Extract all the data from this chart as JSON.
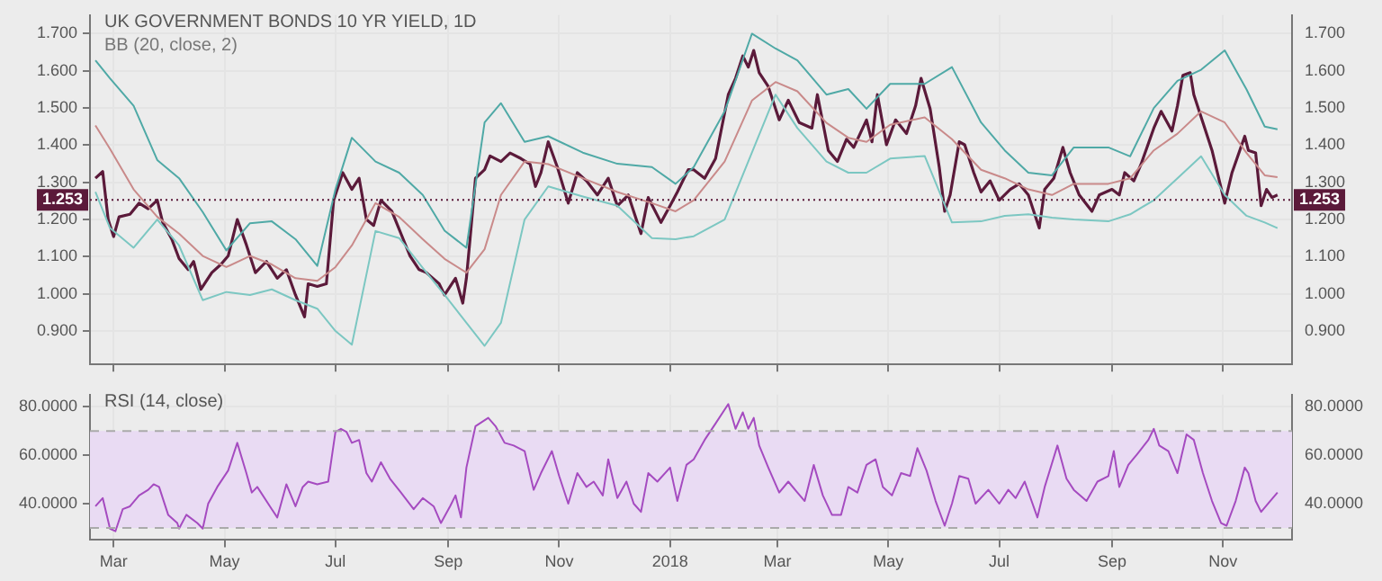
{
  "chart_data": [
    {
      "type": "line",
      "title": "UK GOVERNMENT BONDS 10 YR YIELD, 1D",
      "subtitle": "BB (20, close, 2)",
      "tick_labels": "y",
      "grid": true,
      "xlim": [
        "2017-02-16",
        "2018-12-09"
      ],
      "xticks": [
        {
          "value": "2017-03-01",
          "label": null
        },
        {
          "value": "2017-05-01",
          "label": null
        },
        {
          "value": "2017-07-01",
          "label": null
        },
        {
          "value": "2017-09-01",
          "label": null
        },
        {
          "value": "2017-11-01",
          "label": null
        },
        {
          "value": "2018-01-01",
          "label": null
        },
        {
          "value": "2018-03-01",
          "label": null
        },
        {
          "value": "2018-05-01",
          "label": null
        },
        {
          "value": "2018-07-01",
          "label": null
        },
        {
          "value": "2018-09-01",
          "label": null
        },
        {
          "value": "2018-11-01",
          "label": null
        }
      ],
      "ylim": [
        0.81,
        1.75
      ],
      "yticks": [
        {
          "value": 0.9,
          "label": "0.900"
        },
        {
          "value": 1.0,
          "label": "1.000"
        },
        {
          "value": 1.1,
          "label": "1.100"
        },
        {
          "value": 1.2,
          "label": "1.200"
        },
        {
          "value": 1.3,
          "label": "1.300"
        },
        {
          "value": 1.4,
          "label": "1.400"
        },
        {
          "value": 1.5,
          "label": "1.500"
        },
        {
          "value": 1.6,
          "label": "1.600"
        },
        {
          "value": 1.7,
          "label": "1.700"
        }
      ],
      "y2lim": [
        0.81,
        1.75
      ],
      "y2ticks": [
        {
          "value": 0.9,
          "label": "0.900"
        },
        {
          "value": 1.0,
          "label": "1.000"
        },
        {
          "value": 1.1,
          "label": "1.100"
        },
        {
          "value": 1.2,
          "label": "1.200"
        },
        {
          "value": 1.3,
          "label": "1.300"
        },
        {
          "value": 1.4,
          "label": "1.400"
        },
        {
          "value": 1.5,
          "label": "1.500"
        },
        {
          "value": 1.6,
          "label": "1.600"
        },
        {
          "value": 1.7,
          "label": "1.700"
        }
      ],
      "ref_lines": [
        {
          "axis": "y",
          "value": 1.253,
          "label": "1.253",
          "color": "#5b1a3a",
          "line_style": "dotted"
        }
      ],
      "series": [
        {
          "color": "#4fa9a6",
          "x": [
            "2017-02-19",
            "2017-02-27",
            "2017-03-12",
            "2017-03-25",
            "2017-04-06",
            "2017-04-19",
            "2017-05-02",
            "2017-05-15",
            "2017-05-27",
            "2017-06-09",
            "2017-06-21",
            "2017-07-01",
            "2017-07-10",
            "2017-07-23",
            "2017-08-05",
            "2017-08-18",
            "2017-08-30",
            "2017-09-11",
            "2017-09-21",
            "2017-09-30",
            "2017-10-13",
            "2017-10-26",
            "2017-11-14",
            "2017-12-03",
            "2017-12-22",
            "2018-01-04",
            "2018-01-14",
            "2018-01-31",
            "2018-02-15",
            "2018-02-28",
            "2018-03-12",
            "2018-03-28",
            "2018-04-09",
            "2018-04-19",
            "2018-05-02",
            "2018-05-21",
            "2018-06-05",
            "2018-06-21",
            "2018-07-04",
            "2018-07-17",
            "2018-07-30",
            "2018-08-11",
            "2018-08-30",
            "2018-09-11",
            "2018-09-24",
            "2018-10-07",
            "2018-10-20",
            "2018-11-02",
            "2018-11-14",
            "2018-11-24",
            "2018-12-01"
          ],
          "values": [
            1.628,
            1.58,
            1.506,
            1.36,
            1.311,
            1.22,
            1.117,
            1.19,
            1.195,
            1.147,
            1.075,
            1.281,
            1.42,
            1.356,
            1.326,
            1.266,
            1.17,
            1.124,
            1.461,
            1.513,
            1.409,
            1.424,
            1.38,
            1.35,
            1.341,
            1.296,
            1.341,
            1.491,
            1.7,
            1.66,
            1.628,
            1.536,
            1.551,
            1.498,
            1.565,
            1.565,
            1.61,
            1.461,
            1.386,
            1.326,
            1.319,
            1.394,
            1.394,
            1.37,
            1.5,
            1.573,
            1.603,
            1.655,
            1.55,
            1.45,
            1.443
          ]
        },
        {
          "color": "#7cc7c2",
          "x": [
            "2017-02-19",
            "2017-02-27",
            "2017-03-12",
            "2017-03-25",
            "2017-04-06",
            "2017-04-19",
            "2017-05-02",
            "2017-05-15",
            "2017-05-27",
            "2017-06-09",
            "2017-06-21",
            "2017-07-01",
            "2017-07-10",
            "2017-07-23",
            "2017-08-05",
            "2017-08-18",
            "2017-08-30",
            "2017-09-11",
            "2017-09-21",
            "2017-09-30",
            "2017-10-13",
            "2017-10-26",
            "2017-11-14",
            "2017-12-03",
            "2017-12-22",
            "2018-01-04",
            "2018-01-14",
            "2018-01-31",
            "2018-02-15",
            "2018-02-28",
            "2018-03-12",
            "2018-03-28",
            "2018-04-09",
            "2018-04-19",
            "2018-05-02",
            "2018-05-21",
            "2018-06-05",
            "2018-06-21",
            "2018-07-04",
            "2018-07-17",
            "2018-07-30",
            "2018-08-11",
            "2018-08-30",
            "2018-09-11",
            "2018-09-24",
            "2018-10-07",
            "2018-10-20",
            "2018-11-02",
            "2018-11-14",
            "2018-11-24",
            "2018-12-01"
          ],
          "values": [
            1.274,
            1.177,
            1.124,
            1.2,
            1.13,
            0.983,
            1.005,
            0.997,
            1.012,
            0.983,
            0.96,
            0.9,
            0.863,
            1.169,
            1.15,
            1.07,
            0.997,
            0.922,
            0.86,
            0.922,
            1.2,
            1.289,
            1.262,
            1.237,
            1.15,
            1.147,
            1.155,
            1.2,
            1.38,
            1.536,
            1.446,
            1.356,
            1.326,
            1.326,
            1.364,
            1.371,
            1.192,
            1.195,
            1.21,
            1.214,
            1.205,
            1.2,
            1.195,
            1.214,
            1.252,
            1.311,
            1.37,
            1.266,
            1.21,
            1.192,
            1.177
          ]
        },
        {
          "color": "#c98a8a",
          "x": [
            "2017-02-19",
            "2017-02-27",
            "2017-03-12",
            "2017-03-25",
            "2017-04-06",
            "2017-04-19",
            "2017-05-02",
            "2017-05-15",
            "2017-05-27",
            "2017-06-09",
            "2017-06-21",
            "2017-07-01",
            "2017-07-10",
            "2017-07-23",
            "2017-08-05",
            "2017-08-18",
            "2017-08-30",
            "2017-09-11",
            "2017-09-21",
            "2017-09-30",
            "2017-10-13",
            "2017-10-26",
            "2017-11-14",
            "2017-12-03",
            "2017-12-22",
            "2018-01-04",
            "2018-01-14",
            "2018-01-31",
            "2018-02-15",
            "2018-02-28",
            "2018-03-12",
            "2018-03-28",
            "2018-04-09",
            "2018-04-19",
            "2018-05-02",
            "2018-05-21",
            "2018-06-05",
            "2018-06-21",
            "2018-07-04",
            "2018-07-17",
            "2018-07-30",
            "2018-08-11",
            "2018-08-30",
            "2018-09-11",
            "2018-09-24",
            "2018-10-07",
            "2018-10-20",
            "2018-11-02",
            "2018-11-14",
            "2018-11-24",
            "2018-12-01"
          ],
          "values": [
            1.453,
            1.39,
            1.281,
            1.207,
            1.162,
            1.102,
            1.072,
            1.102,
            1.079,
            1.042,
            1.035,
            1.072,
            1.13,
            1.244,
            1.207,
            1.147,
            1.094,
            1.057,
            1.12,
            1.266,
            1.356,
            1.349,
            1.311,
            1.274,
            1.244,
            1.222,
            1.252,
            1.356,
            1.52,
            1.57,
            1.545,
            1.46,
            1.42,
            1.409,
            1.455,
            1.475,
            1.416,
            1.334,
            1.311,
            1.281,
            1.266,
            1.296,
            1.296,
            1.311,
            1.386,
            1.431,
            1.491,
            1.461,
            1.379,
            1.319,
            1.314
          ]
        },
        {
          "color": "#5b1a3a",
          "x": [
            "2017-02-19",
            "2017-02-23",
            "2017-02-26",
            "2017-03-01",
            "2017-03-04",
            "2017-03-10",
            "2017-03-15",
            "2017-03-20",
            "2017-03-25",
            "2017-03-28",
            "2017-04-02",
            "2017-04-06",
            "2017-04-11",
            "2017-04-14",
            "2017-04-18",
            "2017-04-24",
            "2017-04-29",
            "2017-05-03",
            "2017-05-08",
            "2017-05-13",
            "2017-05-18",
            "2017-05-24",
            "2017-05-30",
            "2017-06-04",
            "2017-06-09",
            "2017-06-14",
            "2017-06-16",
            "2017-06-21",
            "2017-06-26",
            "2017-06-30",
            "2017-07-05",
            "2017-07-10",
            "2017-07-14",
            "2017-07-18",
            "2017-07-22",
            "2017-07-26",
            "2017-08-01",
            "2017-08-06",
            "2017-08-11",
            "2017-08-16",
            "2017-08-20",
            "2017-08-27",
            "2017-08-30",
            "2017-09-05",
            "2017-09-09",
            "2017-09-11",
            "2017-09-13",
            "2017-09-16",
            "2017-09-21",
            "2017-09-24",
            "2017-09-30",
            "2017-10-05",
            "2017-10-11",
            "2017-10-16",
            "2017-10-19",
            "2017-10-22",
            "2017-10-26",
            "2017-10-31",
            "2017-11-06",
            "2017-11-11",
            "2017-11-16",
            "2017-11-22",
            "2017-11-28",
            "2017-12-03",
            "2017-12-09",
            "2017-12-16",
            "2017-12-20",
            "2017-12-27",
            "2018-01-01",
            "2018-01-05",
            "2018-01-11",
            "2018-01-14",
            "2018-01-20",
            "2018-01-26",
            "2018-02-02",
            "2018-02-06",
            "2018-02-10",
            "2018-02-13",
            "2018-02-16",
            "2018-02-19",
            "2018-02-24",
            "2018-03-02",
            "2018-03-07",
            "2018-03-13",
            "2018-03-20",
            "2018-03-23",
            "2018-03-29",
            "2018-04-03",
            "2018-04-08",
            "2018-04-12",
            "2018-04-19",
            "2018-04-22",
            "2018-04-25",
            "2018-04-30",
            "2018-05-05",
            "2018-05-11",
            "2018-05-16",
            "2018-05-19",
            "2018-05-24",
            "2018-05-29",
            "2018-06-01",
            "2018-06-04",
            "2018-06-09",
            "2018-06-12",
            "2018-06-17",
            "2018-06-21",
            "2018-06-26",
            "2018-07-01",
            "2018-07-07",
            "2018-07-12",
            "2018-07-17",
            "2018-07-23",
            "2018-07-26",
            "2018-07-31",
            "2018-08-05",
            "2018-08-09",
            "2018-08-14",
            "2018-08-21",
            "2018-08-25",
            "2018-09-01",
            "2018-09-05",
            "2018-09-08",
            "2018-09-13",
            "2018-09-17",
            "2018-09-24",
            "2018-09-28",
            "2018-10-04",
            "2018-10-07",
            "2018-10-10",
            "2018-10-14",
            "2018-10-16",
            "2018-10-21",
            "2018-10-26",
            "2018-11-02",
            "2018-11-06",
            "2018-11-13",
            "2018-11-15",
            "2018-11-19",
            "2018-11-22",
            "2018-11-25",
            "2018-11-28",
            "2018-12-01"
          ],
          "values": [
            1.311,
            1.329,
            1.2,
            1.154,
            1.207,
            1.214,
            1.244,
            1.229,
            1.252,
            1.192,
            1.147,
            1.095,
            1.065,
            1.087,
            1.012,
            1.057,
            1.079,
            1.102,
            1.2,
            1.132,
            1.057,
            1.087,
            1.042,
            1.065,
            0.997,
            0.938,
            1.027,
            1.02,
            1.027,
            1.252,
            1.326,
            1.281,
            1.311,
            1.2,
            1.184,
            1.252,
            1.222,
            1.162,
            1.102,
            1.065,
            1.057,
            1.027,
            0.997,
            1.042,
            0.975,
            1.042,
            1.147,
            1.311,
            1.334,
            1.371,
            1.356,
            1.379,
            1.364,
            1.349,
            1.289,
            1.326,
            1.409,
            1.341,
            1.244,
            1.326,
            1.304,
            1.266,
            1.311,
            1.237,
            1.266,
            1.162,
            1.259,
            1.192,
            1.237,
            1.274,
            1.334,
            1.334,
            1.311,
            1.364,
            1.536,
            1.58,
            1.64,
            1.61,
            1.655,
            1.595,
            1.558,
            1.468,
            1.521,
            1.461,
            1.446,
            1.536,
            1.386,
            1.356,
            1.416,
            1.394,
            1.468,
            1.409,
            1.536,
            1.401,
            1.468,
            1.431,
            1.506,
            1.58,
            1.498,
            1.341,
            1.222,
            1.266,
            1.409,
            1.401,
            1.326,
            1.274,
            1.304,
            1.252,
            1.281,
            1.296,
            1.266,
            1.177,
            1.281,
            1.311,
            1.394,
            1.326,
            1.266,
            1.222,
            1.266,
            1.281,
            1.266,
            1.326,
            1.304,
            1.349,
            1.446,
            1.491,
            1.438,
            1.506,
            1.588,
            1.595,
            1.536,
            1.461,
            1.386,
            1.244,
            1.326,
            1.424,
            1.386,
            1.379,
            1.237,
            1.281,
            1.259,
            1.266
          ]
        }
      ]
    },
    {
      "type": "line",
      "title": "RSI (14, close)",
      "grid": true,
      "xlim": [
        "2017-02-16",
        "2018-12-09"
      ],
      "xticks": [
        {
          "value": "2017-03-01",
          "label": "Mar"
        },
        {
          "value": "2017-05-01",
          "label": "May"
        },
        {
          "value": "2017-07-01",
          "label": "Jul"
        },
        {
          "value": "2017-09-01",
          "label": "Sep"
        },
        {
          "value": "2017-11-01",
          "label": "Nov"
        },
        {
          "value": "2018-01-01",
          "label": "2018"
        },
        {
          "value": "2018-03-01",
          "label": "Mar"
        },
        {
          "value": "2018-05-01",
          "label": "May"
        },
        {
          "value": "2018-07-01",
          "label": "Jul"
        },
        {
          "value": "2018-09-01",
          "label": "Sep"
        },
        {
          "value": "2018-11-01",
          "label": "Nov"
        }
      ],
      "ylim": [
        25,
        85
      ],
      "yticks": [
        {
          "value": 40,
          "label": "40.0000"
        },
        {
          "value": 60,
          "label": "60.0000"
        },
        {
          "value": 80,
          "label": "80.0000"
        }
      ],
      "y2lim": [
        25,
        85
      ],
      "y2ticks": [
        {
          "value": 40,
          "label": "40.0000"
        },
        {
          "value": 60,
          "label": "60.0000"
        },
        {
          "value": 80,
          "label": "80.0000"
        }
      ],
      "bands": [
        {
          "axis": "y",
          "from": 30,
          "to": 70,
          "color": "#e9dbf3"
        }
      ],
      "ref_lines": [
        {
          "axis": "y",
          "value": 30,
          "color": "#aaaaaa",
          "line_style": "dashed"
        },
        {
          "axis": "y",
          "value": 70,
          "color": "#aaaaaa",
          "line_style": "dashed"
        }
      ],
      "series": [
        {
          "color": "#a54bc0",
          "x": [
            "2017-02-19",
            "2017-02-23",
            "2017-02-27",
            "2017-03-02",
            "2017-03-06",
            "2017-03-10",
            "2017-03-15",
            "2017-03-20",
            "2017-03-23",
            "2017-03-26",
            "2017-03-31",
            "2017-04-05",
            "2017-04-06",
            "2017-04-10",
            "2017-04-16",
            "2017-04-19",
            "2017-04-22",
            "2017-04-27",
            "2017-05-03",
            "2017-05-08",
            "2017-05-13",
            "2017-05-16",
            "2017-05-19",
            "2017-05-27",
            "2017-05-30",
            "2017-06-04",
            "2017-06-09",
            "2017-06-13",
            "2017-06-16",
            "2017-06-21",
            "2017-06-27",
            "2017-07-01",
            "2017-07-04",
            "2017-07-07",
            "2017-07-10",
            "2017-07-14",
            "2017-07-18",
            "2017-07-21",
            "2017-07-26",
            "2017-07-31",
            "2017-08-06",
            "2017-08-13",
            "2017-08-18",
            "2017-08-24",
            "2017-08-28",
            "2017-09-02",
            "2017-09-05",
            "2017-09-08",
            "2017-09-11",
            "2017-09-16",
            "2017-09-23",
            "2017-09-27",
            "2017-10-02",
            "2017-10-07",
            "2017-10-13",
            "2017-10-18",
            "2017-10-22",
            "2017-10-28",
            "2017-11-01",
            "2017-11-06",
            "2017-11-11",
            "2017-11-16",
            "2017-11-20",
            "2017-11-25",
            "2017-11-28",
            "2017-12-03",
            "2017-12-08",
            "2017-12-12",
            "2017-12-16",
            "2017-12-20",
            "2017-12-25",
            "2018-01-01",
            "2018-01-05",
            "2018-01-10",
            "2018-01-14",
            "2018-01-20",
            "2018-01-26",
            "2018-02-02",
            "2018-02-06",
            "2018-02-10",
            "2018-02-13",
            "2018-02-16",
            "2018-02-19",
            "2018-02-24",
            "2018-03-02",
            "2018-03-07",
            "2018-03-12",
            "2018-03-16",
            "2018-03-21",
            "2018-03-26",
            "2018-03-31",
            "2018-04-05",
            "2018-04-09",
            "2018-04-14",
            "2018-04-19",
            "2018-04-24",
            "2018-04-28",
            "2018-05-03",
            "2018-05-08",
            "2018-05-13",
            "2018-05-17",
            "2018-05-22",
            "2018-05-27",
            "2018-06-01",
            "2018-06-05",
            "2018-06-09",
            "2018-06-14",
            "2018-06-18",
            "2018-06-25",
            "2018-07-01",
            "2018-07-06",
            "2018-07-10",
            "2018-07-15",
            "2018-07-22",
            "2018-07-26",
            "2018-08-02",
            "2018-08-07",
            "2018-08-11",
            "2018-08-18",
            "2018-08-24",
            "2018-08-30",
            "2018-09-02",
            "2018-09-05",
            "2018-09-10",
            "2018-09-15",
            "2018-09-21",
            "2018-09-24",
            "2018-09-27",
            "2018-10-02",
            "2018-10-07",
            "2018-10-12",
            "2018-10-16",
            "2018-10-21",
            "2018-10-26",
            "2018-10-31",
            "2018-11-03",
            "2018-11-08",
            "2018-11-13",
            "2018-11-15",
            "2018-11-19",
            "2018-11-22",
            "2018-11-27",
            "2018-12-01"
          ],
          "values": [
            38.9,
            42.3,
            29.7,
            28.6,
            37.7,
            38.9,
            43.4,
            45.7,
            48.0,
            46.9,
            35.4,
            32.0,
            29.7,
            35.4,
            32.0,
            29.7,
            40.0,
            46.9,
            53.7,
            65.1,
            52.6,
            44.6,
            46.9,
            37.7,
            34.3,
            48.0,
            38.9,
            46.9,
            49.1,
            48.0,
            49.1,
            69.7,
            70.9,
            69.7,
            65.1,
            66.3,
            52.6,
            49.1,
            57.1,
            50.3,
            44.6,
            37.7,
            42.3,
            38.9,
            32.0,
            38.9,
            43.4,
            34.3,
            54.9,
            72.0,
            75.4,
            72.0,
            65.1,
            64.0,
            61.7,
            45.7,
            52.6,
            61.7,
            51.4,
            40.0,
            52.6,
            46.9,
            49.1,
            43.4,
            58.3,
            42.3,
            49.1,
            40.0,
            36.6,
            52.6,
            49.1,
            54.9,
            41.1,
            56.0,
            58.3,
            66.3,
            73.1,
            81.1,
            70.9,
            77.7,
            70.9,
            75.4,
            64.0,
            54.9,
            44.6,
            49.1,
            44.6,
            41.1,
            56.0,
            43.4,
            35.4,
            35.4,
            46.9,
            44.6,
            56.0,
            58.3,
            46.9,
            43.4,
            52.6,
            51.4,
            62.9,
            53.7,
            41.1,
            30.9,
            40.0,
            51.4,
            50.3,
            40.0,
            45.7,
            40.0,
            45.7,
            42.3,
            49.1,
            34.3,
            46.9,
            64.0,
            50.3,
            45.7,
            41.1,
            49.1,
            51.4,
            61.7,
            46.9,
            56.0,
            60.6,
            66.3,
            70.9,
            64.0,
            61.7,
            52.6,
            68.6,
            66.3,
            52.6,
            41.1,
            32.0,
            30.9,
            41.1,
            54.9,
            52.6,
            41.1,
            36.6,
            41.1,
            44.6
          ]
        }
      ]
    }
  ]
}
